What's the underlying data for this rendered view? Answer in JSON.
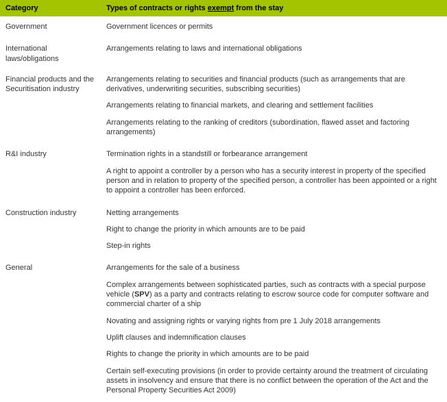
{
  "header": {
    "category": "Category",
    "types_prefix": "Types of contracts or rights ",
    "types_underlined": "exempt",
    "types_suffix": " from the stay"
  },
  "rows": [
    {
      "category": "Government",
      "items": [
        "Government licences or permits"
      ]
    },
    {
      "category": "International laws/obligations",
      "items": [
        "Arrangements relating to laws and international obligations"
      ]
    },
    {
      "category": "Financial products and the Securitisation industry",
      "items": [
        "Arrangements relating to securities and financial products (such as arrangements that are derivatives, underwriting securities, subscribing securities)",
        "Arrangements relating to financial markets, and clearing and settlement facilities",
        "Arrangements relating to the ranking of creditors (subordination, flawed asset and factoring arrangements)"
      ]
    },
    {
      "category": "R&I industry",
      "items": [
        "Termination rights in a standstill or forbearance arrangement",
        "A right to appoint a controller by a person who has a security interest in property of the specified person and in relation to property of the specified person, a controller has been appointed or a right to appoint a controller has been enforced."
      ]
    },
    {
      "category": "Construction industry",
      "items": [
        "Netting arrangements",
        "Right to change the priority in which amounts are to be paid",
        "Step-in rights"
      ]
    },
    {
      "category": "General",
      "items": [
        "Arrangements for the sale of a business",
        {
          "parts": [
            {
              "t": "Complex arrangements between sophisticated parties, such as contracts with a special purpose vehicle (",
              "b": false
            },
            {
              "t": "SPV",
              "b": true
            },
            {
              "t": ") as a party and contracts relating to escrow source code for computer software and commercial charter of a ship",
              "b": false
            }
          ]
        },
        "Novating and assigning rights or varying rights from pre 1 July 2018 arrangements",
        "Uplift clauses and indemnification clauses",
        "Rights to change the priority in which amounts are to be paid",
        "Certain self-executing provisions (in order to provide certainty around the treatment of circulating assets in insolvency and ensure that there is no conflict between the operation of the Act and the Personal Property Securities Act 2009)"
      ]
    }
  ]
}
